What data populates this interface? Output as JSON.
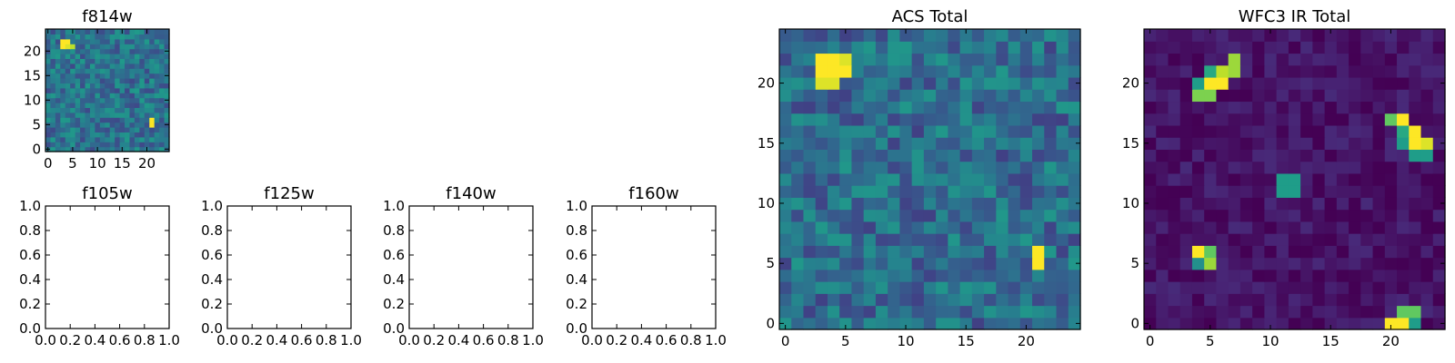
{
  "colors": {
    "background": "#ffffff",
    "axis": "#000000",
    "colormap": "viridis"
  },
  "chart_data": [
    {
      "type": "heatmap",
      "title": "f814w",
      "grid_size": [
        25,
        25
      ],
      "xlim": [
        -0.5,
        24.5
      ],
      "ylim": [
        -0.5,
        24.5
      ],
      "xticks": [
        "0",
        "5",
        "10",
        "15",
        "20"
      ],
      "yticks": [
        "0",
        "5",
        "10",
        "15",
        "20"
      ],
      "background_level": 0.38,
      "noise_amplitude": 0.16,
      "hot_pixels": [
        {
          "x": 3,
          "y": 22,
          "value": 1.0
        },
        {
          "x": 4,
          "y": 22,
          "value": 1.0
        },
        {
          "x": 3,
          "y": 21,
          "value": 1.0
        },
        {
          "x": 4,
          "y": 21,
          "value": 0.95
        },
        {
          "x": 5,
          "y": 21,
          "value": 0.9
        },
        {
          "x": 21,
          "y": 6,
          "value": 1.0
        },
        {
          "x": 21,
          "y": 5,
          "value": 1.0
        }
      ]
    },
    {
      "type": "empty",
      "title": "f105w",
      "xlim": [
        0,
        1
      ],
      "ylim": [
        0,
        1
      ],
      "xticks": [
        "0.0",
        "0.2",
        "0.4",
        "0.6",
        "0.8",
        "1.0"
      ],
      "yticks": [
        "0.0",
        "0.2",
        "0.4",
        "0.6",
        "0.8",
        "1.0"
      ]
    },
    {
      "type": "empty",
      "title": "f125w",
      "xlim": [
        0,
        1
      ],
      "ylim": [
        0,
        1
      ],
      "xticks": [
        "0.0",
        "0.2",
        "0.4",
        "0.6",
        "0.8",
        "1.0"
      ],
      "yticks": [
        "0.0",
        "0.2",
        "0.4",
        "0.6",
        "0.8",
        "1.0"
      ]
    },
    {
      "type": "empty",
      "title": "f140w",
      "xlim": [
        0,
        1
      ],
      "ylim": [
        0,
        1
      ],
      "xticks": [
        "0.0",
        "0.2",
        "0.4",
        "0.6",
        "0.8",
        "1.0"
      ],
      "yticks": [
        "0.0",
        "0.2",
        "0.4",
        "0.6",
        "0.8",
        "1.0"
      ]
    },
    {
      "type": "empty",
      "title": "f160w",
      "xlim": [
        0,
        1
      ],
      "ylim": [
        0,
        1
      ],
      "xticks": [
        "0.0",
        "0.2",
        "0.4",
        "0.6",
        "0.8",
        "1.0"
      ],
      "yticks": [
        "0.0",
        "0.2",
        "0.4",
        "0.6",
        "0.8",
        "1.0"
      ]
    },
    {
      "type": "heatmap",
      "title": "ACS Total",
      "grid_size": [
        25,
        25
      ],
      "xlim": [
        -0.5,
        24.5
      ],
      "ylim": [
        -0.5,
        24.5
      ],
      "xticks": [
        "0",
        "5",
        "10",
        "15",
        "20"
      ],
      "yticks": [
        "0",
        "5",
        "10",
        "15",
        "20"
      ],
      "background_level": 0.36,
      "noise_amplitude": 0.17,
      "hot_pixels": [
        {
          "x": 3,
          "y": 22,
          "value": 1.0
        },
        {
          "x": 4,
          "y": 22,
          "value": 1.0
        },
        {
          "x": 5,
          "y": 22,
          "value": 0.95
        },
        {
          "x": 3,
          "y": 21,
          "value": 1.0
        },
        {
          "x": 4,
          "y": 21,
          "value": 1.0
        },
        {
          "x": 5,
          "y": 21,
          "value": 1.0
        },
        {
          "x": 3,
          "y": 20,
          "value": 0.95
        },
        {
          "x": 4,
          "y": 20,
          "value": 0.95
        },
        {
          "x": 21,
          "y": 6,
          "value": 1.0
        },
        {
          "x": 21,
          "y": 5,
          "value": 1.0
        }
      ]
    },
    {
      "type": "heatmap",
      "title": "WFC3 IR Total",
      "grid_size": [
        25,
        25
      ],
      "xlim": [
        -0.5,
        24.5
      ],
      "ylim": [
        -0.5,
        24.5
      ],
      "xticks": [
        "0",
        "5",
        "10",
        "15",
        "20"
      ],
      "yticks": [
        "0",
        "5",
        "10",
        "15",
        "20"
      ],
      "background_level": 0.05,
      "noise_amplitude": 0.07,
      "hot_pixels": [
        {
          "x": 7,
          "y": 22,
          "value": 0.85
        },
        {
          "x": 6,
          "y": 21,
          "value": 0.9
        },
        {
          "x": 7,
          "y": 21,
          "value": 0.85
        },
        {
          "x": 5,
          "y": 21,
          "value": 0.6
        },
        {
          "x": 5,
          "y": 20,
          "value": 1.0
        },
        {
          "x": 6,
          "y": 20,
          "value": 1.0
        },
        {
          "x": 4,
          "y": 20,
          "value": 0.55
        },
        {
          "x": 4,
          "y": 19,
          "value": 0.8
        },
        {
          "x": 5,
          "y": 19,
          "value": 0.8
        },
        {
          "x": 20,
          "y": 17,
          "value": 0.75
        },
        {
          "x": 21,
          "y": 17,
          "value": 1.0
        },
        {
          "x": 21,
          "y": 16,
          "value": 0.6
        },
        {
          "x": 22,
          "y": 16,
          "value": 1.0
        },
        {
          "x": 22,
          "y": 15,
          "value": 1.0
        },
        {
          "x": 23,
          "y": 15,
          "value": 0.95
        },
        {
          "x": 21,
          "y": 15,
          "value": 0.55
        },
        {
          "x": 22,
          "y": 14,
          "value": 0.55
        },
        {
          "x": 23,
          "y": 14,
          "value": 0.55
        },
        {
          "x": 11,
          "y": 12,
          "value": 0.55
        },
        {
          "x": 12,
          "y": 12,
          "value": 0.55
        },
        {
          "x": 11,
          "y": 11,
          "value": 0.55
        },
        {
          "x": 12,
          "y": 11,
          "value": 0.55
        },
        {
          "x": 4,
          "y": 6,
          "value": 1.0
        },
        {
          "x": 5,
          "y": 6,
          "value": 0.75
        },
        {
          "x": 4,
          "y": 5,
          "value": 0.5
        },
        {
          "x": 5,
          "y": 5,
          "value": 0.85
        },
        {
          "x": 21,
          "y": 1,
          "value": 0.75
        },
        {
          "x": 22,
          "y": 1,
          "value": 0.75
        },
        {
          "x": 20,
          "y": 0,
          "value": 1.0
        },
        {
          "x": 21,
          "y": 0,
          "value": 1.0
        },
        {
          "x": 22,
          "y": 0,
          "value": 0.55
        }
      ]
    }
  ]
}
